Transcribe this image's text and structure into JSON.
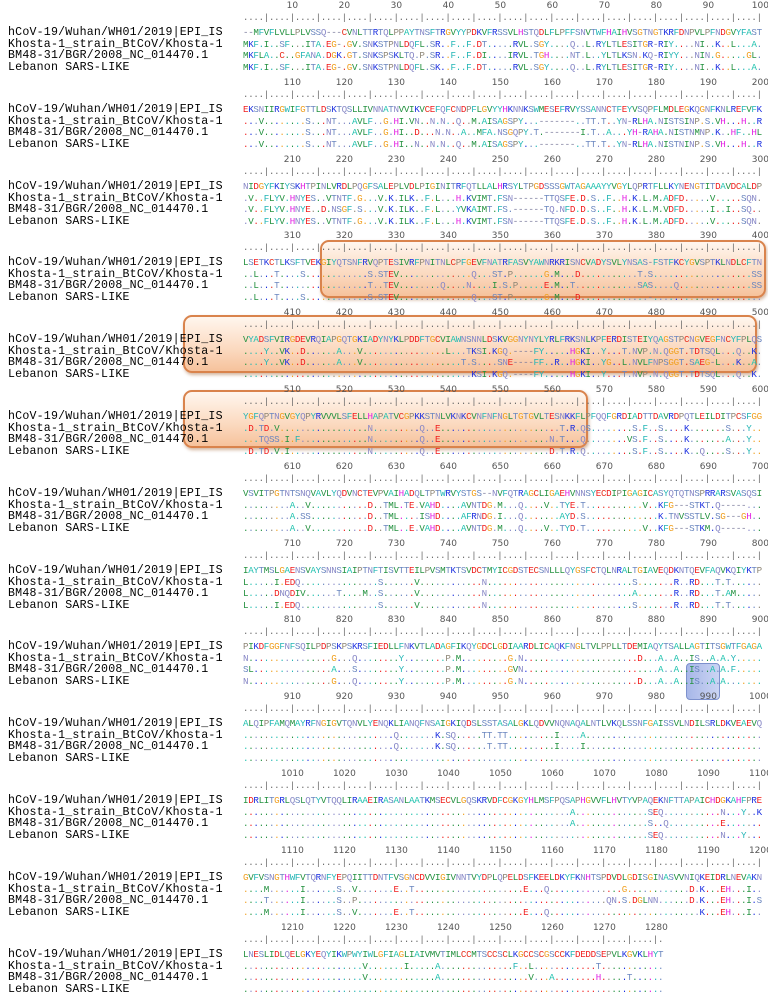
{
  "names": [
    "hCoV-19/Wuhan/WH01/2019|EPI_IS",
    "Khosta-1_strain_BtCoV/Khosta-1",
    "BM48-31/BGR/2008_NC_014470.1",
    "Lebanon SARS-LIKE"
  ],
  "residue_colors": {
    "A": "#1fc2ae",
    "V": "#23913f",
    "I": "#23913f",
    "L": "#23913f",
    "M": "#23913f",
    "F": "#22b5b5",
    "Y": "#22b5b5",
    "W": "#22b5b5",
    "C": "#e8301e",
    "D": "#f01c1c",
    "E": "#f01c1c",
    "K": "#1a2ee0",
    "R": "#1a2ee0",
    "H": "#e21ee2",
    "S": "#6a86bf",
    "T": "#6a86bf",
    "N": "#8787c6",
    "Q": "#8787c6",
    "G": "#f0a020",
    "P": "#8e8676",
    "gap": "#7c7c9c"
  },
  "highlight_colors": {
    "orange_fill": "#f6c29c",
    "orange_border": "#d9834c",
    "blue_fill": "#a8b8e8"
  },
  "blocks": [
    {
      "ruler_labels": [
        "10",
        "20",
        "30",
        "40",
        "50",
        "60",
        "70",
        "80",
        "90",
        "100"
      ],
      "rows": [
        "--MFVFLVLLPLVSSQ---CVNLTTRTQLPPAYTNSFTRGVYYPDKVFRSSVLHSTQDLFLPFFSNVTWFHAIHVSGTNGTKRFDNPVLPFNDGVYFAST",
        "MKF.I..SF...ITA.EG-.GV.SNKSTPNLDQFL.SR..F..F.DT.....RVL.SGY....Q..L.RYLTLESITGR-RIY....NI..K..L...A.",
        "MKFLA..C..GFANA.DGK.GT.SNKSPSKLTQ.P.SR..F..F.DI....IRVL.TGH....NT.L..YLTLKSN.KQ-RIYY...NIN.G.....GL.",
        "MKF.I..SF...ITA.EG-.GV.SNKSTPNLDQFL.SK..F..F.DT.....RVL.SGY....Q..L.RYLTLESITGR-RIY....NI..K..L...A."
      ]
    },
    {
      "ruler_labels": [
        "110",
        "120",
        "130",
        "140",
        "150",
        "160",
        "170",
        "180",
        "190",
        "200"
      ],
      "rows": [
        "EKSNIIRGWIFGTTLDSKTQSLLIVNNATNVVIKVCEFQFCNDPFLGVYYHKNNKSWMESEFRVYSSANNCTFEYVSQPFLMDLEGKQGNFKNLREFVFK",
        "...V........S...NT...AVLF..G.HI.VN..N.N..Q..M.AISAGSPY...-------..TT.T..YN-RLHA.NISTSINP.S.VH...H..R",
        "...V........S...NT...AVLF..G.HI..D...N.N..A..MFA.NSGQPY.T.-------I.T..A...YH-RAHA.NISTNMNP.K..HF..HL",
        "...V........S...NT...AVLF..G.HI..N..N.N..Q..M.AISAGSPY...-------..TT.T..YN-RLHA.NISTNINP.S.VH...H..R"
      ]
    },
    {
      "ruler_labels": [
        "210",
        "220",
        "230",
        "240",
        "250",
        "260",
        "270",
        "280",
        "290",
        "300"
      ],
      "rows": [
        "NIDGYFKIYSKHTPINLVRDLPQGFSALEPLVDLPIGINITRFQTLLALHRSYLTPGDSSSGWTAGAAAYYVGYLQPRTFLLKYNENGTITDAVDCALDP",
        ".V..FLYV.HNYES..VTNTF.G...V.K.ILK..F.L...H.KVIMT.FSN------TTQSFE.D.S..F..H.K.L.M.ADFD.....V.....SQN.",
        ".V..FLYV.HNYE..D.NSGF.S...V.K.ILK..F.L...YVKAIMT.FS.------TQ.NFD.D.S..F..H.K.L.M.VDFD.....I..I..SQ..",
        ".V..FLYV.HNYES..VTNTF.G...V.K.ILK..F.L...H.KVIMT.FSN------TTQSFE.D.S..F..H.K.L.M.ADFD.....V.....SQN."
      ]
    },
    {
      "ruler_labels": [
        "310",
        "320",
        "330",
        "340",
        "350",
        "360",
        "370",
        "380",
        "390",
        "400"
      ],
      "rows": [
        "LSETKCTLKSFTVEKGIYQTSNFRVQPTESIVRFPNITNLCPFGEVFNATRFASVYAWNRKRISNCVADYSVLYNSAS-FSTFKCYGVSPTKLNDLCFTN",
        "..L...T....S............S.STEV..............Q...ST.P......G.M...D...........T.S...................SS",
        "..L...T.................T..TEV........Q....N....I.S.P.....E.M..T............SAS....Q..............SS",
        "..L...T....S............S.STEV..............Q...ST.P......G.M...D.............-"
      ]
    },
    {
      "ruler_labels": [
        "410",
        "420",
        "430",
        "440",
        "450",
        "460",
        "470",
        "480",
        "490",
        "500"
      ],
      "rows": [
        "VYADSFVIRGDEVRQIAPGQTGKIADYNYKLPDDFTGCVIAWNSNNLDSKVGGNYNYLYRLFRKSNLKPFERDISTEIYQAGSTPCNGVEGFNCYFPLQS",
        "....Y..VK..D......A...V................L...TKSI.KGQ.----FY.....HGKI..Y...T.NVP.N.QGGT.TDTSQL...Q..K.",
        "....Y..VK..D......A...V...................T.S....SNE----FF..R..HGKI..YG..L.NVLFNPSGGT.SAEG-L...K..A.",
        "............................................KSI.KGQ.----FY.....HGKI..Y...T.NVP.N.QGGT.TDTSQL...Q..K."
      ]
    },
    {
      "ruler_labels": [
        "510",
        "520",
        "530",
        "540",
        "550",
        "560",
        "570",
        "580",
        "590",
        "600"
      ],
      "rows": [
        "YGFQPTNGVGYQPYRVVVLSFELLHAPATVCGPKKSTNLVKNKCVNFNFNGLTGTGVLTESNKKFLPFQQFGRDIADTTDAVRDPQTLEILDITPCSFGG",
        ".D.TD.V.................N.........Q..E.......................T.R.QS........S.F..S....K.......S...Y..",
        "...TQSS.I.F.............N.........Q..E.....................N.T...Q........VS.F..S....K.......A...Y..",
        ".D.TD.V.I...............N.........Q..E.....................D.T.R.Q.........S.F..S....K..Q....S...Y.."
      ]
    },
    {
      "ruler_labels": [
        "610",
        "620",
        "630",
        "640",
        "650",
        "660",
        "670",
        "680",
        "690",
        "700"
      ],
      "rows": [
        "VSVITPGTNTSNQVAVLYQDVNCTEVPVAIHADQLTPTWRVYSTGS--NVFQTRAGCLIGAEHVNNSYECDIPIGAGICASYQTQTNSPRRARSVASQSI",
        ".........A..V...........D..TML.TE.VAHD....AVNTDG.M...Q....V..TYE.T...........V..KFG---STKT.Q-----...",
        ".........A.SS...........D..TML....ISHD....AFRNDG.I...Q.......AYD.S..............K.TNVSSTLV.SG---GH..",
        ".........A..V...........D..TML..E.VAHD....AVNTDG.M...Q....V..TYD.T...........V..KFG---STKM.Q-----..."
      ]
    },
    {
      "ruler_labels": [
        "710",
        "720",
        "730",
        "740",
        "750",
        "760",
        "770",
        "780",
        "790",
        "800"
      ],
      "rows": [
        "IAYTMSLGAENSVAYSNNSIAIPTNFTISVTTEILPVSMTKTSVDCTMYICGDSTECSNLLLQYGSFCTQLNRALTGIAVEQDKNTQEVFAQVKQIYKTP",
        "L.....I.EDQ...............S......V............N............................S.......R..RD...T.T......",
        "L.....DNQDIV......T....M..S......V............N............................A.......R..RD...T.AM.....",
        "L.....I.EDQ...............S......V............N............................S.......R..RD...T.T......"
      ]
    },
    {
      "ruler_labels": [
        "810",
        "820",
        "830",
        "840",
        "850",
        "860",
        "870",
        "880",
        "890",
        "900"
      ],
      "rows": [
        "PIKDFGGFNFSQILPDPSKPSKRSFIEDLLFNKVTLADAGFIKQYGDCLGDIAARDLICAQKFNGLTVLPPLLTDEMIAQYTSALLAGTITSGWTFGAGA",
        "N................G...Q........Y........P.M.........G.N......................D...A..A..IS..A.A.Y.....",
        "SL...............A...S........Y........P.M.........GVN..........................A..A..IS..A.A.F.....",
        "N................G...Q........Y........P.M.........G.N......................D...A..A..IS..A.A"
      ]
    },
    {
      "ruler_labels": [
        "910",
        "920",
        "930",
        "940",
        "950",
        "960",
        "970",
        "980",
        "990",
        "1000"
      ],
      "rows": [
        "ALQIPFAMQMAYRFNGIGVTQNVLYENQKLIANQFNSAIGKIQDSLSSTASALGKLQDVVNQNAQALNTLVKQLSSNFGAISSVLNDILSRLDKVEAEVQ",
        ".............................Q.......K.SQ.....TT.TT.........I....A",
        ".............................Q.......K.SQ......T.TT.........I....I",
        ""
      ]
    },
    {
      "ruler_labels": [
        "1010",
        "1020",
        "1030",
        "1040",
        "1050",
        "1060",
        "1070",
        "1080",
        "1090",
        "1100"
      ],
      "rows": [
        "IDRLITGRLQSLQTYVTQQLIRAAEIRASANLAATKMSECVLGQSKRVDFCGKGYHLMSFPQSAPHGVVFLHVTYVPAQEKNFTTAPAICHDGKAHFPRE",
        "...............................................................A..............SEQ...........N...Y..K",
        "...............................................................A..............S..Q..........E",
        "..............................................................................SEQ...........N...Y"
      ]
    },
    {
      "ruler_labels": [
        "1110",
        "1120",
        "1130",
        "1140",
        "1150",
        "1160",
        "1170",
        "1180",
        "1190",
        "1200"
      ],
      "rows": [
        "GVFVSNGTHWFVTQRNFYEPQIITTDNTFVSGNCDVVIGIVNNTVYDPLQPELDSFKEELDKYFKNHTSPDVDLGDISGINASVVNIQKEIDRLNEVAKN",
        "....M......I......S..V.......E..T.....................E...Q..............G............D.K...EH...I..",
        "....T......I......S..P................................................QN.S.DGLNN......D.K...EH...I.S",
        "....M......I......S..V.......E..T.....................E...Q.............................K...EH...I.."
      ]
    },
    {
      "ruler_labels": [
        "1210",
        "1220",
        "1230",
        "1240",
        "1250",
        "1260",
        "1270",
        "1280"
      ],
      "rows": [
        "LNESLIDLQELGKYEQYIKWPWYIWLGFIAGLIAIVMVTIMLCCMTSCCSCLKGCCSCGSCCKFDEDDSEPVLKGVKLHYT",
        ".......................V.......I.....A..............F..L............T",
        ".......................V.............A.................V...A........H.....T",
        ""
      ]
    }
  ]
}
